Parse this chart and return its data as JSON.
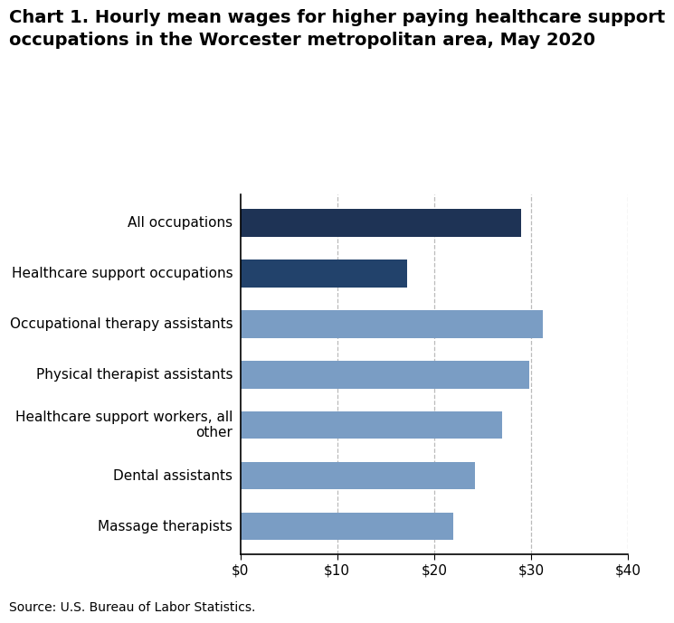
{
  "title_line1": "Chart 1. Hourly mean wages for higher paying healthcare support",
  "title_line2": "occupations in the Worcester metropolitan area, May 2020",
  "categories": [
    "Massage therapists",
    "Dental assistants",
    "Healthcare support workers, all\nother",
    "Physical therapist assistants",
    "Occupational therapy assistants",
    "Healthcare support occupations",
    "All occupations"
  ],
  "values": [
    22.0,
    24.2,
    27.0,
    29.8,
    31.2,
    17.2,
    29.0
  ],
  "bar_colors": [
    "#7a9dc4",
    "#7a9dc4",
    "#7a9dc4",
    "#7a9dc4",
    "#7a9dc4",
    "#22426b",
    "#1e3355"
  ],
  "xlabel_ticks": [
    0,
    10,
    20,
    30,
    40
  ],
  "xlabel_labels": [
    "$0",
    "$10",
    "$20",
    "$30",
    "$40"
  ],
  "xlim": [
    0,
    40
  ],
  "source": "Source: U.S. Bureau of Labor Statistics.",
  "grid_color": "#bbbbbb",
  "background_color": "#ffffff",
  "title_fontsize": 14,
  "tick_fontsize": 11,
  "source_fontsize": 10
}
